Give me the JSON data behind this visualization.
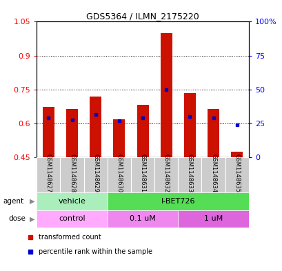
{
  "title": "GDS5364 / ILMN_2175220",
  "samples": [
    "GSM1148627",
    "GSM1148628",
    "GSM1148629",
    "GSM1148630",
    "GSM1148631",
    "GSM1148632",
    "GSM1148633",
    "GSM1148634",
    "GSM1148635"
  ],
  "red_values": [
    0.673,
    0.665,
    0.72,
    0.617,
    0.682,
    1.0,
    0.735,
    0.665,
    0.475
  ],
  "blue_values": [
    0.625,
    0.615,
    0.64,
    0.612,
    0.625,
    0.748,
    0.63,
    0.625,
    0.592
  ],
  "ylim": [
    0.45,
    1.05
  ],
  "yticks_left": [
    0.45,
    0.6,
    0.75,
    0.9,
    1.05
  ],
  "ytick_labels_left": [
    "0.45",
    "0.6",
    "0.75",
    "0.9",
    "1.05"
  ],
  "ytick_labels_right": [
    "0",
    "25",
    "50",
    "75",
    "100%"
  ],
  "gridlines": [
    0.6,
    0.75,
    0.9
  ],
  "agent_groups": [
    {
      "label": "vehicle",
      "start": 0,
      "end": 3,
      "color": "#aaeebb"
    },
    {
      "label": "I-BET726",
      "start": 3,
      "end": 9,
      "color": "#55dd55"
    }
  ],
  "dose_groups": [
    {
      "label": "control",
      "start": 0,
      "end": 3,
      "color": "#ffaaff"
    },
    {
      "label": "0.1 uM",
      "start": 3,
      "end": 6,
      "color": "#ee88ee"
    },
    {
      "label": "1 uM",
      "start": 6,
      "end": 9,
      "color": "#dd66dd"
    }
  ],
  "bar_color": "#cc1100",
  "blue_color": "#0000cc",
  "bar_width": 0.5,
  "legend_items": [
    {
      "label": "transformed count",
      "color": "#cc1100"
    },
    {
      "label": "percentile rank within the sample",
      "color": "#0000cc"
    }
  ]
}
